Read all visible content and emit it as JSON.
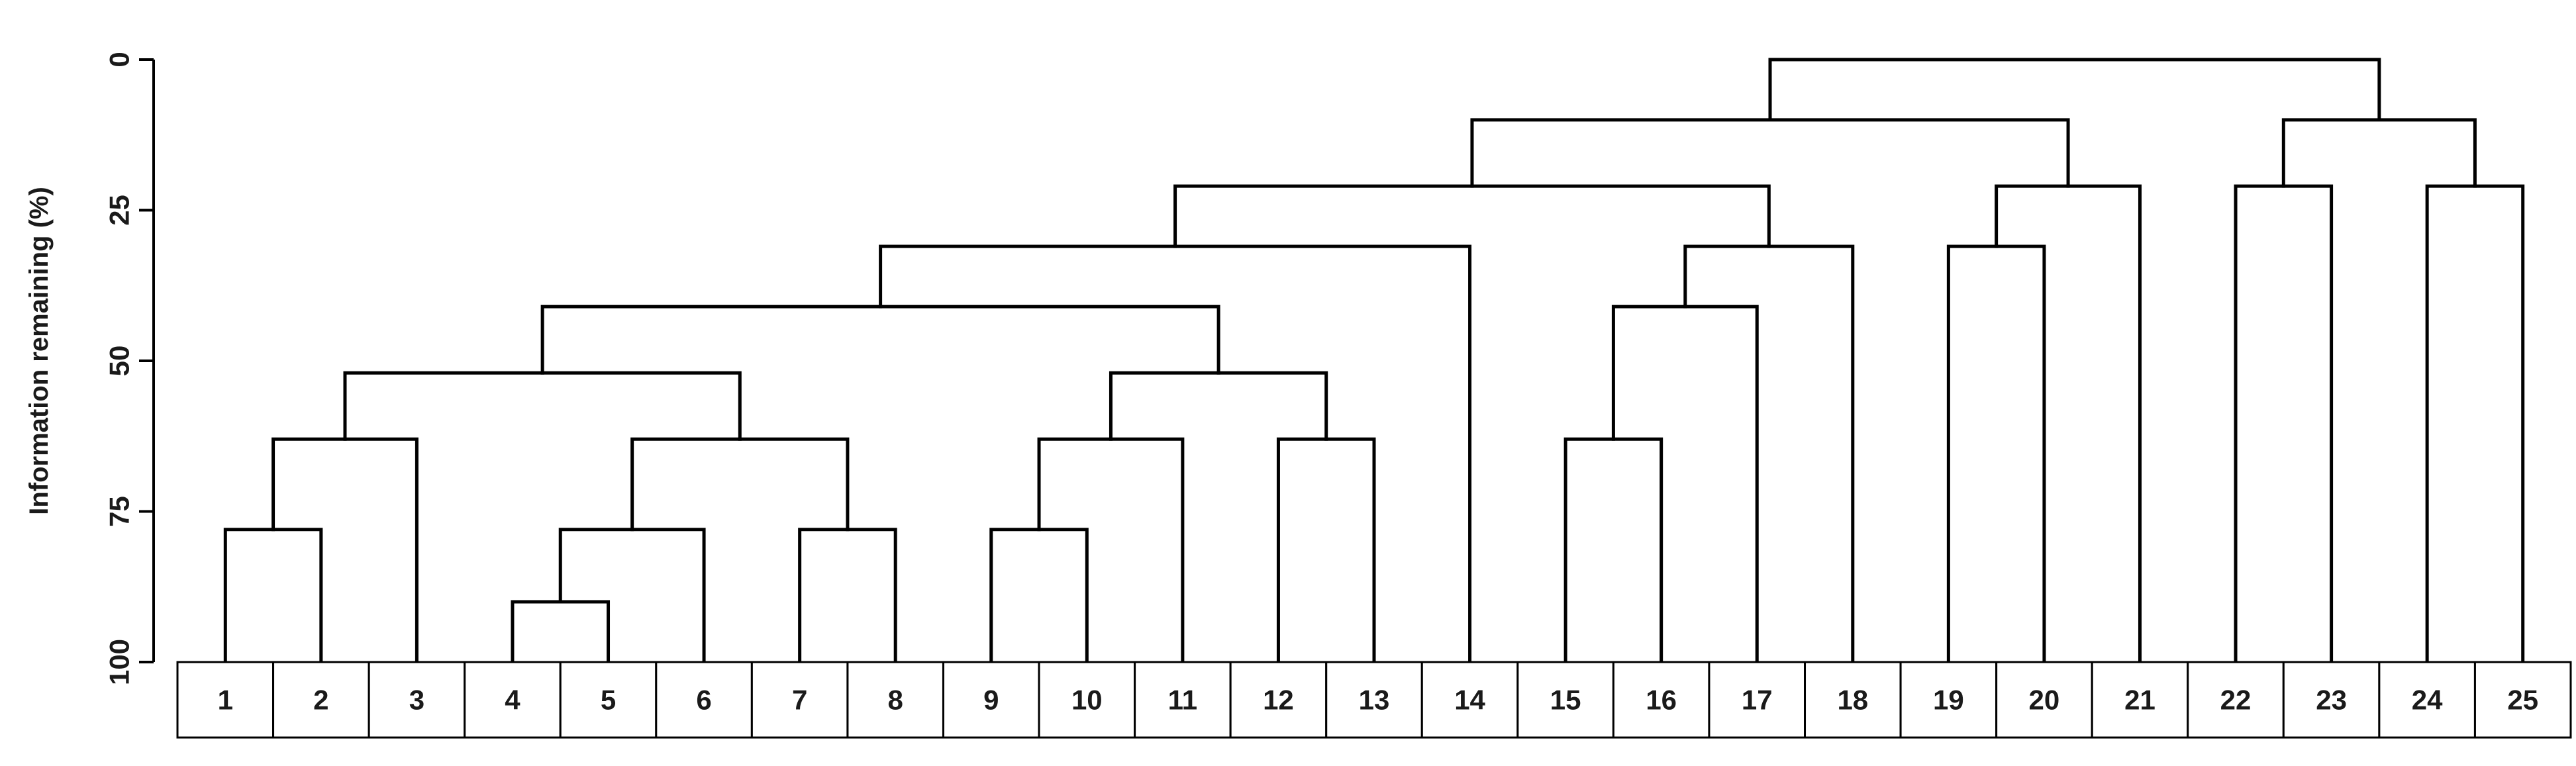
{
  "chart_data": {
    "type": "dendrogram",
    "ylabel": "Information remaining (%)",
    "ylim": [
      0,
      100
    ],
    "y_inverted": true,
    "yticks": [
      0,
      25,
      50,
      75,
      100
    ],
    "leaves": [
      "1",
      "2",
      "3",
      "4",
      "5",
      "6",
      "7",
      "8",
      "9",
      "10",
      "11",
      "12",
      "13",
      "14",
      "15",
      "16",
      "17",
      "18",
      "19",
      "20",
      "21",
      "22",
      "23",
      "24",
      "25"
    ],
    "merges": [
      {
        "a": "L4",
        "b": "L5",
        "height": 90
      },
      {
        "a": "L1",
        "b": "L2",
        "height": 78
      },
      {
        "a": "N0",
        "b": "L6",
        "height": 78
      },
      {
        "a": "L7",
        "b": "L8",
        "height": 78
      },
      {
        "a": "L9",
        "b": "L10",
        "height": 78
      },
      {
        "a": "N1",
        "b": "L3",
        "height": 63
      },
      {
        "a": "N2",
        "b": "N3",
        "height": 63
      },
      {
        "a": "N4",
        "b": "L11",
        "height": 63
      },
      {
        "a": "L12",
        "b": "L13",
        "height": 63
      },
      {
        "a": "L15",
        "b": "L16",
        "height": 63
      },
      {
        "a": "N5",
        "b": "N6",
        "height": 52
      },
      {
        "a": "N7",
        "b": "N8",
        "height": 52
      },
      {
        "a": "N10",
        "b": "N11",
        "height": 41
      },
      {
        "a": "N9",
        "b": "L17",
        "height": 41
      },
      {
        "a": "N12",
        "b": "L14",
        "height": 31
      },
      {
        "a": "N13",
        "b": "L18",
        "height": 31
      },
      {
        "a": "L19",
        "b": "L20",
        "height": 31
      },
      {
        "a": "N14",
        "b": "N15",
        "height": 21
      },
      {
        "a": "N16",
        "b": "L21",
        "height": 21
      },
      {
        "a": "L22",
        "b": "L23",
        "height": 21
      },
      {
        "a": "L24",
        "b": "L25",
        "height": 21
      },
      {
        "a": "N17",
        "b": "N18",
        "height": 10
      },
      {
        "a": "N19",
        "b": "N20",
        "height": 10
      },
      {
        "a": "N21",
        "b": "N22",
        "height": 0
      }
    ]
  }
}
